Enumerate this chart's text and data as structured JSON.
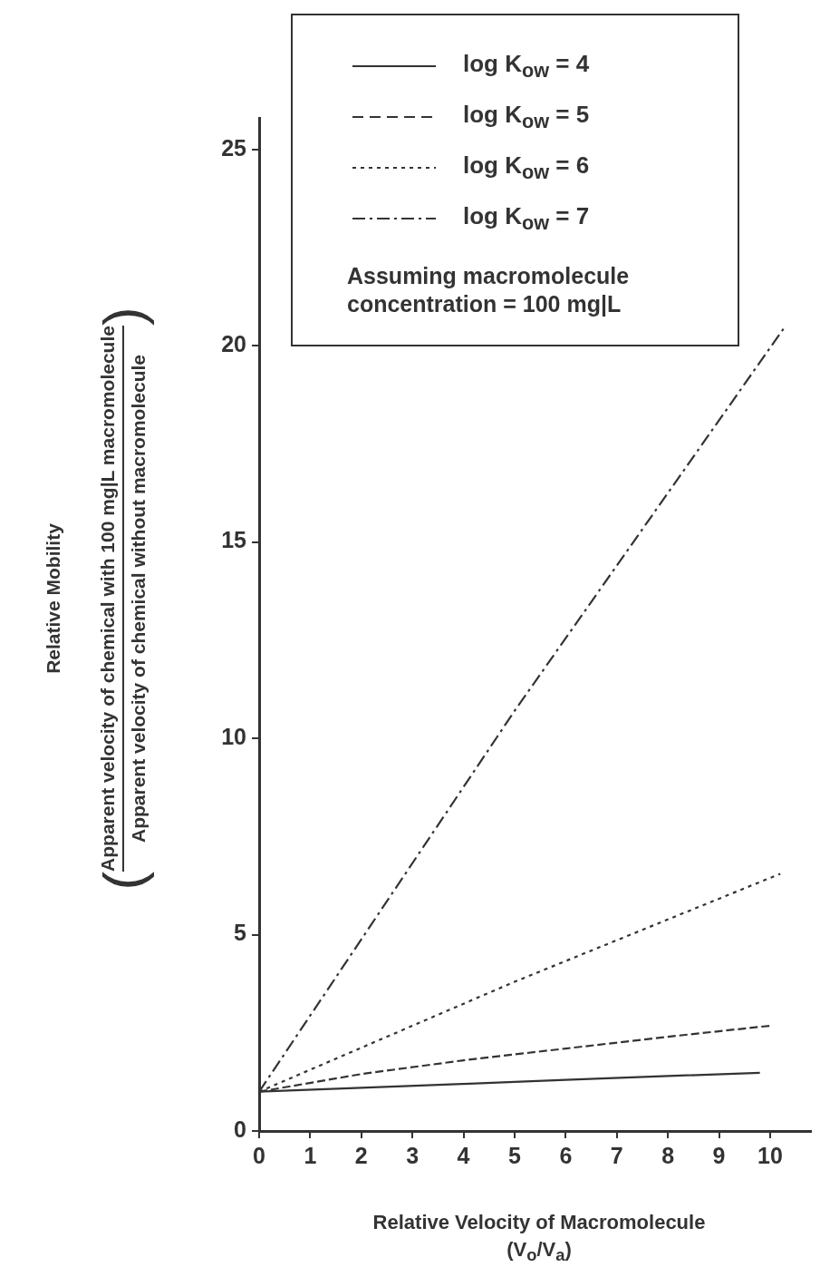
{
  "chart_data": {
    "type": "line",
    "xlabel": "Relative Velocity of Macromolecule\n(V$_{o}$/V$_{a}$)",
    "annotations": [
      "Relative Mobility",
      "Apparent velocity of chemical with 100 mg|L macromolecule",
      "Apparent velocity of chemical without macromolecule",
      "Assuming macromolecule concentration = 100 mg|L",
      "(",
      ")"
    ],
    "xlim": [
      0,
      10.8
    ],
    "xticks": [
      0,
      1,
      2,
      3,
      4,
      5,
      6,
      7,
      8,
      9,
      10
    ],
    "ylim": [
      0,
      25.8
    ],
    "yticks": [
      0,
      5,
      10,
      15,
      20,
      25
    ],
    "grid": false,
    "legend": "top",
    "marker": "none",
    "series": [
      {
        "name": "log K$_{ow}$ = 4",
        "color": "#333333",
        "line_style": "solid",
        "x": [
          0,
          2,
          4,
          6,
          8,
          9.8
        ],
        "values": [
          1.0,
          1.1,
          1.2,
          1.3,
          1.4,
          1.48
        ]
      },
      {
        "name": "log K$_{ow}$ = 5",
        "color": "#333333",
        "line_style": "dashed",
        "x": [
          0,
          2,
          4,
          6,
          8,
          10
        ],
        "values": [
          1.0,
          1.45,
          1.8,
          2.1,
          2.4,
          2.68
        ]
      },
      {
        "name": "log K$_{ow}$ = 6",
        "color": "#333333",
        "line_style": "dotted",
        "x": [
          0,
          5,
          10.2
        ],
        "values": [
          1.0,
          3.8,
          6.55
        ]
      },
      {
        "name": "log K$_{ow}$ = 7",
        "color": "#333333",
        "line_style": "dashdot",
        "x": [
          0,
          5,
          10.3
        ],
        "values": [
          1.0,
          10.7,
          20.5
        ]
      }
    ]
  }
}
